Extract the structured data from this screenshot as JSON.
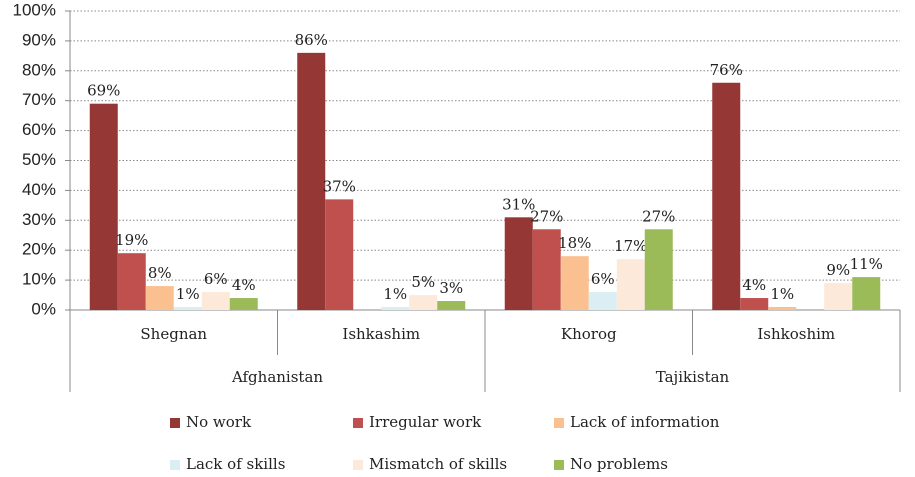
{
  "chart_data": {
    "type": "bar",
    "categories": [
      "Shegnan",
      "Ishkashim",
      "Khorog",
      "Ishkoshim"
    ],
    "group_labels": [
      "Afghanistan",
      "Tajikistan"
    ],
    "series": [
      {
        "name": "No work",
        "color": "#953735",
        "values": [
          69,
          86,
          31,
          76
        ],
        "value_labels": [
          "69%",
          "86%",
          "31%",
          "76%"
        ]
      },
      {
        "name": "Irregular work",
        "color": "#c0504d",
        "values": [
          19,
          37,
          27,
          4
        ],
        "value_labels": [
          "19%",
          "37%",
          "27%",
          "4%"
        ]
      },
      {
        "name": "Lack of information",
        "color": "#fac090",
        "values": [
          8,
          null,
          18,
          1
        ],
        "value_labels": [
          "8%",
          null,
          "18%",
          "1%"
        ]
      },
      {
        "name": "Lack of skills",
        "color": "#dbeef4",
        "values": [
          1,
          1,
          6,
          null
        ],
        "value_labels": [
          "1%",
          "1%",
          "6%",
          null
        ]
      },
      {
        "name": "Mismatch of skills",
        "color": "#fde9d9",
        "values": [
          6,
          5,
          17,
          9
        ],
        "value_labels": [
          "6%",
          "5%",
          "17%",
          "9%"
        ]
      },
      {
        "name": "No problems",
        "color": "#9bbb59",
        "values": [
          4,
          3,
          27,
          11
        ],
        "value_labels": [
          "4%",
          "3%",
          "27%",
          "11%"
        ]
      }
    ],
    "ylim": [
      0,
      100
    ],
    "yticks": [
      {
        "value": 0,
        "label": "0%"
      },
      {
        "value": 10,
        "label": "10%"
      },
      {
        "value": 20,
        "label": "20%"
      },
      {
        "value": 30,
        "label": "30%"
      },
      {
        "value": 40,
        "label": "40%"
      },
      {
        "value": 50,
        "label": "50%"
      },
      {
        "value": 60,
        "label": "60%"
      },
      {
        "value": 70,
        "label": "70%"
      },
      {
        "value": 80,
        "label": "80%"
      },
      {
        "value": 90,
        "label": "90%"
      },
      {
        "value": 100,
        "label": "100%"
      }
    ],
    "grid": true
  }
}
